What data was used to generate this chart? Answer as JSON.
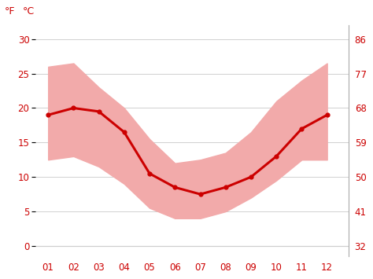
{
  "months": [
    1,
    2,
    3,
    4,
    5,
    6,
    7,
    8,
    9,
    10,
    11,
    12
  ],
  "month_labels": [
    "01",
    "02",
    "03",
    "04",
    "05",
    "06",
    "07",
    "08",
    "09",
    "10",
    "11",
    "12"
  ],
  "avg_temp_c": [
    19.0,
    20.0,
    19.5,
    16.5,
    10.5,
    8.5,
    7.5,
    8.5,
    10.0,
    13.0,
    17.0,
    19.0
  ],
  "max_temp_c": [
    26.0,
    26.5,
    23.0,
    20.0,
    15.5,
    12.0,
    12.5,
    13.5,
    16.5,
    21.0,
    24.0,
    26.5
  ],
  "min_temp_c": [
    12.5,
    13.0,
    11.5,
    9.0,
    5.5,
    4.0,
    4.0,
    5.0,
    7.0,
    9.5,
    12.5,
    12.5
  ],
  "y_ticks_c": [
    0,
    5,
    10,
    15,
    20,
    25,
    30
  ],
  "y_ticks_f": [
    32,
    41,
    50,
    59,
    68,
    77,
    86
  ],
  "ylim_c": [
    -1.5,
    32
  ],
  "xlim": [
    0.5,
    12.85
  ],
  "line_color": "#cc0000",
  "band_color": "#f2aaaa",
  "bg_color": "#ffffff",
  "grid_color": "#d0d0d0",
  "tick_color": "#cc0000",
  "label_f": "°F",
  "label_c": "°C",
  "tick_fontsize": 8.5,
  "label_fontsize": 9.0
}
